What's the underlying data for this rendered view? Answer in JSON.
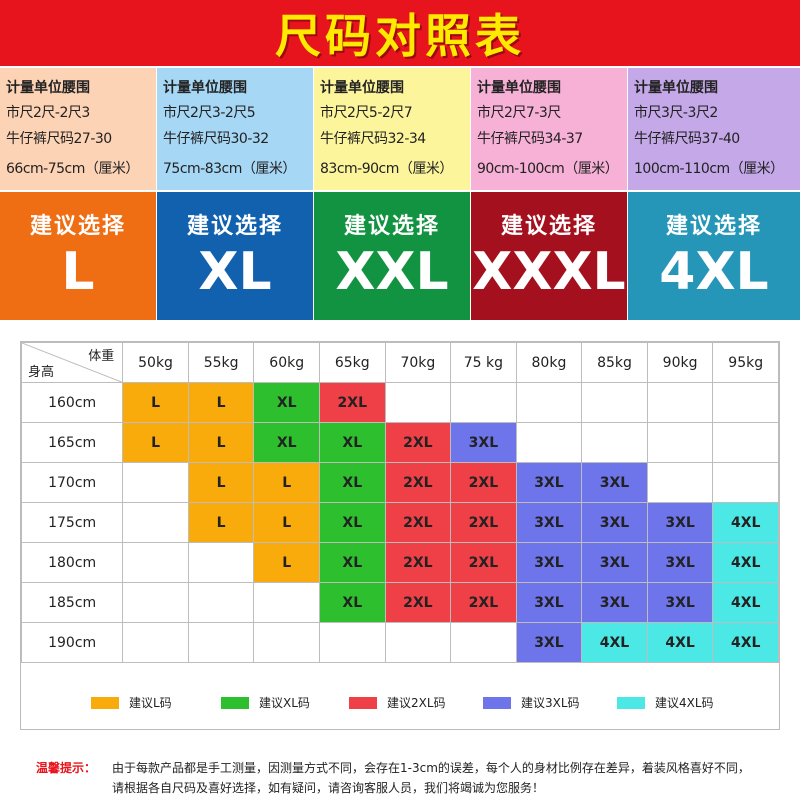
{
  "title": "尺码对照表",
  "size_columns": [
    {
      "info_title": "计量单位腰围",
      "line1": "市尺2尺-2尺3",
      "line2": "牛仔裤尺码27-30",
      "line3": "66cm-75cm（厘米）",
      "rec_label": "建议选择",
      "size": "L",
      "info_color": "#fdd3b6",
      "rec_color": "#ef6e14"
    },
    {
      "info_title": "计量单位腰围",
      "line1": "市尺2尺3-2尺5",
      "line2": "牛仔裤尺码30-32",
      "line3": "75cm-83cm（厘米）",
      "rec_label": "建议选择",
      "size": "XL",
      "info_color": "#a6d7f5",
      "rec_color": "#1161ae"
    },
    {
      "info_title": "计量单位腰围",
      "line1": "市尺2尺5-2尺7",
      "line2": "牛仔裤尺码32-34",
      "line3": "83cm-90cm（厘米）",
      "rec_label": "建议选择",
      "size": "XXL",
      "info_color": "#fcf59b",
      "rec_color": "#129341"
    },
    {
      "info_title": "计量单位腰围",
      "line1": "市尺2尺7-3尺",
      "line2": "牛仔裤尺码34-37",
      "line3": "90cm-100cm（厘米）",
      "rec_label": "建议选择",
      "size": "XXXL",
      "info_color": "#f7b0d6",
      "rec_color": "#a5101e"
    },
    {
      "info_title": "计量单位腰围",
      "line1": "市尺3尺-3尺2",
      "line2": "牛仔裤尺码37-40",
      "line3": "100cm-110cm（厘米）",
      "rec_label": "建议选择",
      "size": "4XL",
      "info_color": "#c4a8e8",
      "rec_color": "#2696b8"
    }
  ],
  "table": {
    "corner_weight": "体重",
    "corner_height": "身高",
    "weights": [
      "50kg",
      "55kg",
      "60kg",
      "65kg",
      "70kg",
      "75 kg",
      "80kg",
      "85kg",
      "90kg",
      "95kg"
    ],
    "rows": [
      {
        "height": "160cm",
        "cells": [
          "L",
          "L",
          "XL",
          "2XL",
          "",
          "",
          "",
          "",
          "",
          ""
        ]
      },
      {
        "height": "165cm",
        "cells": [
          "L",
          "L",
          "XL",
          "XL",
          "2XL",
          "3XL",
          "",
          "",
          "",
          ""
        ]
      },
      {
        "height": "170cm",
        "cells": [
          "",
          "L",
          "L",
          "XL",
          "2XL",
          "2XL",
          "3XL",
          "3XL",
          "",
          ""
        ]
      },
      {
        "height": "175cm",
        "cells": [
          "",
          "L",
          "L",
          "XL",
          "2XL",
          "2XL",
          "3XL",
          "3XL",
          "3XL",
          "4XL"
        ]
      },
      {
        "height": "180cm",
        "cells": [
          "",
          "",
          "L",
          "XL",
          "2XL",
          "2XL",
          "3XL",
          "3XL",
          "3XL",
          "4XL"
        ]
      },
      {
        "height": "185cm",
        "cells": [
          "",
          "",
          "",
          "XL",
          "2XL",
          "2XL",
          "3XL",
          "3XL",
          "3XL",
          "4XL"
        ]
      },
      {
        "height": "190cm",
        "cells": [
          "",
          "",
          "",
          "",
          "",
          "",
          "3XL",
          "4XL",
          "4XL",
          "4XL"
        ]
      }
    ]
  },
  "legend": [
    {
      "label": "建议L码",
      "color": "#f9ab0c"
    },
    {
      "label": "建议XL码",
      "color": "#2ebf2e"
    },
    {
      "label": "建议2XL码",
      "color": "#ef3f47"
    },
    {
      "label": "建议3XL码",
      "color": "#6e75ea"
    },
    {
      "label": "建议4XL码",
      "color": "#4be8e5"
    }
  ],
  "notice": {
    "label": "温馨提示：",
    "line1": "由于每款产品都是手工测量，因测量方式不同，会存在1-3cm的误差，每个人的身材比例存在差异，着装风格喜好不同，",
    "line2": "请根据各自尺码及喜好选择，如有疑问，请咨询客服人员，我们将竭诚为您服务！"
  },
  "colors": {
    "title_bg": "#e8141d",
    "title_text": "#ffea00"
  }
}
